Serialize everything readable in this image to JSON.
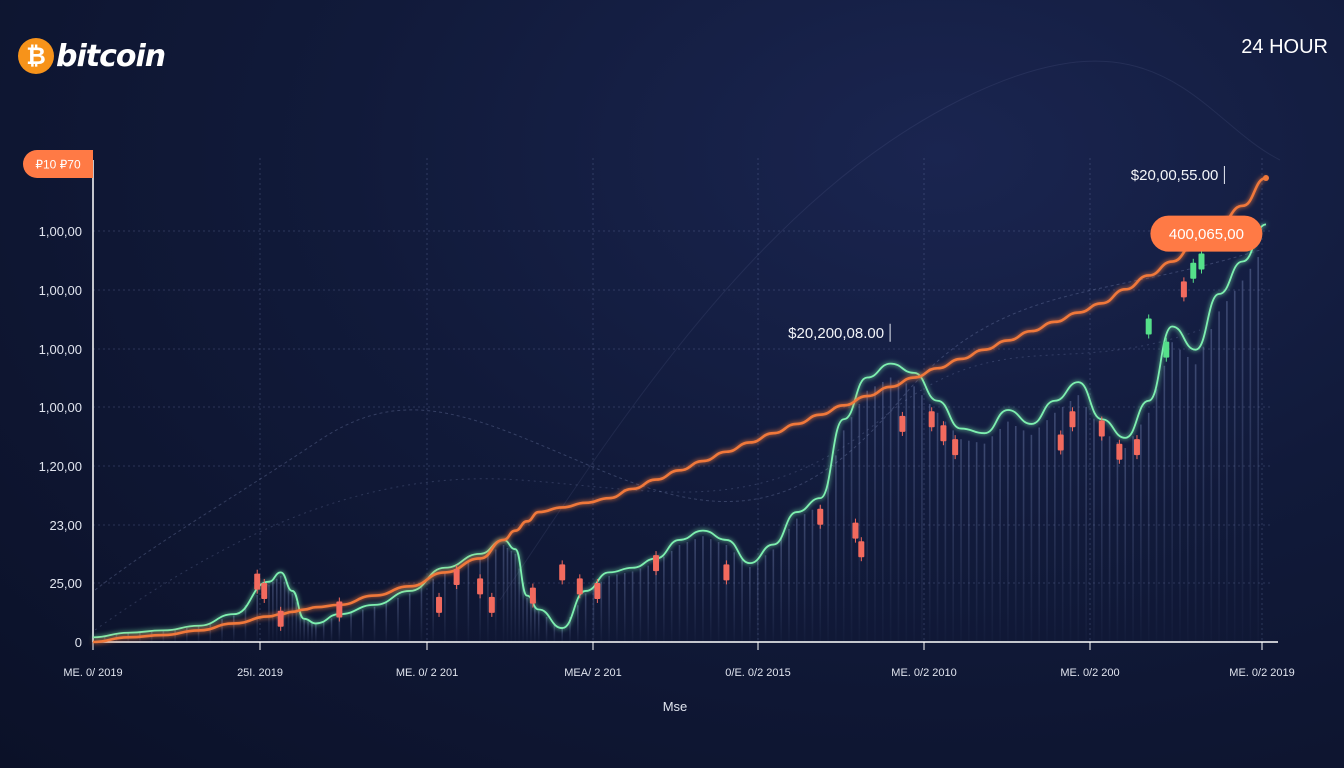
{
  "header": {
    "logo_symbol": "₿",
    "logo_text": "bitcoin",
    "timeframe": "24 HOUR"
  },
  "colors": {
    "price_line": "#7ef0b0",
    "trend_line": "#f0783a",
    "up_candle": "#55e08a",
    "down_candle": "#f26a5e",
    "accent": "#ff7a45"
  },
  "chart_data": {
    "type": "line",
    "xlabel": "Mse",
    "ylabel": "",
    "tag_label": "₽10 ₽70",
    "y_tick_labels": [
      "0",
      "25,00",
      "23,00",
      "1,20,00",
      "1,00,00",
      "1,00,00",
      "1,00,00",
      "1,00,00"
    ],
    "x_tick_labels": [
      "ME. 0/ 2019",
      "25I. 2019",
      "ME. 0/ 2 201",
      "MEA/ 2 201",
      "0/E. 0/2 2015",
      "ME. 0/2 2010",
      "ME. 0/2 200",
      "ME. 0/2 2019"
    ],
    "ylim": [
      0,
      100
    ],
    "x": [
      0,
      3,
      6,
      9,
      12,
      15,
      16,
      17,
      18,
      19,
      21,
      24,
      27,
      30,
      33,
      35,
      36,
      37,
      38,
      40,
      42,
      44,
      46,
      48,
      50,
      52,
      54,
      56,
      58,
      60,
      62,
      64,
      66,
      68,
      70,
      72,
      74,
      76,
      78,
      80,
      82,
      84,
      86,
      88,
      90,
      92,
      94,
      96,
      98,
      100
    ],
    "series": [
      {
        "values": [
          1,
          2,
          2.5,
          3.5,
          6,
          13,
          15,
          11,
          5,
          4,
          6,
          8,
          11,
          16,
          19,
          22,
          20,
          10,
          7,
          3,
          11,
          15,
          16,
          18,
          22,
          24,
          22,
          17,
          21,
          28,
          31,
          48,
          57,
          60,
          58,
          52,
          46,
          45,
          50,
          47,
          52,
          56,
          48,
          44,
          52,
          68,
          63,
          75,
          82,
          90
        ]
      },
      {
        "values": [
          0,
          1,
          1.5,
          2.5,
          4,
          5.5,
          6,
          6.5,
          7,
          7.5,
          8,
          10,
          12,
          15,
          18,
          22,
          24,
          26,
          28,
          29,
          30,
          31,
          33,
          35,
          37,
          39,
          41,
          43,
          45,
          47,
          49,
          51,
          53,
          55,
          57,
          59,
          61,
          63,
          65,
          67,
          69,
          71,
          73,
          76,
          79,
          82,
          86,
          90,
          94,
          100
        ]
      }
    ],
    "annotations": [
      {
        "text": "$20,00,55.00",
        "style": "text",
        "x": 98.5,
        "y": 100
      },
      {
        "text": "400,065,00",
        "style": "pill",
        "x": 98.5,
        "y": 88
      },
      {
        "text": "$20,200,08.00",
        "style": "text",
        "x": 70,
        "y": 66
      }
    ],
    "candles": [
      {
        "x": 14,
        "v": 13,
        "dir": "down"
      },
      {
        "x": 14.6,
        "v": 11,
        "dir": "down"
      },
      {
        "x": 16,
        "v": 5,
        "dir": "down"
      },
      {
        "x": 21,
        "v": 7,
        "dir": "down"
      },
      {
        "x": 29.5,
        "v": 8,
        "dir": "down"
      },
      {
        "x": 31,
        "v": 14,
        "dir": "down"
      },
      {
        "x": 33,
        "v": 12,
        "dir": "down"
      },
      {
        "x": 34,
        "v": 8,
        "dir": "down"
      },
      {
        "x": 37.5,
        "v": 10,
        "dir": "down"
      },
      {
        "x": 40,
        "v": 15,
        "dir": "down"
      },
      {
        "x": 41.5,
        "v": 12,
        "dir": "down"
      },
      {
        "x": 43,
        "v": 11,
        "dir": "down"
      },
      {
        "x": 48,
        "v": 17,
        "dir": "down"
      },
      {
        "x": 54,
        "v": 15,
        "dir": "down"
      },
      {
        "x": 62,
        "v": 27,
        "dir": "down"
      },
      {
        "x": 65,
        "v": 24,
        "dir": "down"
      },
      {
        "x": 65.5,
        "v": 20,
        "dir": "down"
      },
      {
        "x": 69,
        "v": 47,
        "dir": "down"
      },
      {
        "x": 71.5,
        "v": 48,
        "dir": "down"
      },
      {
        "x": 72.5,
        "v": 45,
        "dir": "down"
      },
      {
        "x": 73.5,
        "v": 42,
        "dir": "down"
      },
      {
        "x": 82.5,
        "v": 43,
        "dir": "down"
      },
      {
        "x": 83.5,
        "v": 48,
        "dir": "down"
      },
      {
        "x": 86,
        "v": 46,
        "dir": "down"
      },
      {
        "x": 87.5,
        "v": 41,
        "dir": "down"
      },
      {
        "x": 89,
        "v": 42,
        "dir": "down"
      },
      {
        "x": 90,
        "v": 68,
        "dir": "up"
      },
      {
        "x": 91.5,
        "v": 63,
        "dir": "up"
      },
      {
        "x": 93,
        "v": 76,
        "dir": "down"
      },
      {
        "x": 93.8,
        "v": 80,
        "dir": "up"
      },
      {
        "x": 94.5,
        "v": 82,
        "dir": "up"
      }
    ]
  }
}
